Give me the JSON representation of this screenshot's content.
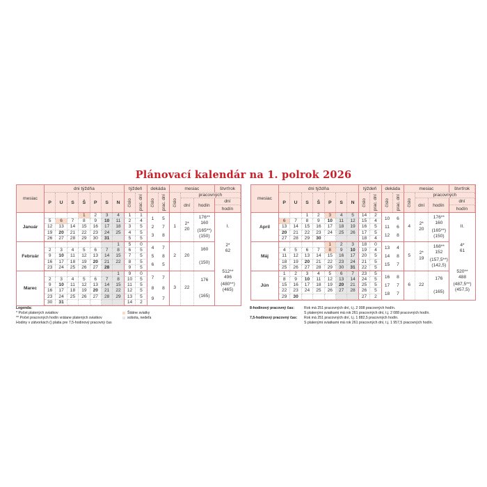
{
  "title": "Plánovací kalendár na 1. polrok 2026",
  "colors": {
    "title": "#c8202a",
    "border": "#e07b80",
    "header_bg": "#fbe3dc",
    "holiday": "#fbd9c9",
    "weekend": "#e6e6e6"
  },
  "header": {
    "month": "mesiac",
    "weekdays_group": "dni týždňa",
    "weekdays": [
      "P",
      "U",
      "S",
      "Š",
      "P",
      "S",
      "N"
    ],
    "week_group": "týždeň",
    "number": "číslo",
    "workdays_short": "prac. dní",
    "decade_group": "dekáda",
    "month_group": "mesiac",
    "working": "pracovných",
    "days": "dní",
    "hours": "hodín",
    "quarter_group": "štvrťrok"
  },
  "halves": [
    {
      "months": [
        {
          "name": "Január",
          "holidays": [
            "1",
            "6"
          ],
          "bold": [
            "10",
            "20",
            "31"
          ],
          "weeks": [
            {
              "days": [
                "",
                "",
                "",
                "1",
                "2",
                "3",
                "4"
              ],
              "week": "1",
              "workdays": "1"
            },
            {
              "days": [
                "5",
                "6",
                "7",
                "8",
                "9",
                "10",
                "11"
              ],
              "week": "2",
              "workdays": "4"
            },
            {
              "days": [
                "12",
                "13",
                "14",
                "15",
                "16",
                "17",
                "18"
              ],
              "week": "3",
              "workdays": "5"
            },
            {
              "days": [
                "19",
                "20",
                "21",
                "22",
                "23",
                "24",
                "25"
              ],
              "week": "4",
              "workdays": "5"
            },
            {
              "days": [
                "26",
                "27",
                "28",
                "29",
                "30",
                "31",
                ""
              ],
              "week": "5",
              "workdays": "5"
            }
          ],
          "decades": [
            [
              "1",
              "5"
            ],
            [
              "2",
              "7"
            ],
            [
              "3",
              "8"
            ]
          ],
          "number": "1",
          "days": [
            "2*",
            "20"
          ],
          "hours": [
            [
              "176**",
              "160"
            ],
            [
              "(165**)",
              "(150)"
            ]
          ]
        },
        {
          "name": "Február",
          "holidays": [],
          "bold": [
            "10",
            "20",
            "28"
          ],
          "weeks": [
            {
              "days": [
                "",
                "",
                "",
                "",
                "",
                "",
                "1"
              ],
              "week": "5",
              "workdays": "0"
            },
            {
              "days": [
                "2",
                "3",
                "4",
                "5",
                "6",
                "7",
                "8"
              ],
              "week": "6",
              "workdays": "5"
            },
            {
              "days": [
                "9",
                "10",
                "11",
                "12",
                "13",
                "14",
                "15"
              ],
              "week": "7",
              "workdays": "5"
            },
            {
              "days": [
                "16",
                "17",
                "18",
                "19",
                "20",
                "21",
                "22"
              ],
              "week": "8",
              "workdays": "5"
            },
            {
              "days": [
                "23",
                "24",
                "25",
                "26",
                "27",
                "28",
                ""
              ],
              "week": "9",
              "workdays": "5"
            }
          ],
          "decades": [
            [
              "4",
              "7"
            ],
            [
              "5",
              "8"
            ],
            [
              "6",
              "5"
            ]
          ],
          "number": "2",
          "days": [
            "20"
          ],
          "hours": [
            [
              "160"
            ],
            [
              "(150)"
            ]
          ]
        },
        {
          "name": "Marec",
          "holidays": [],
          "bold": [
            "10",
            "20",
            "31"
          ],
          "weeks": [
            {
              "days": [
                "",
                "",
                "",
                "",
                "",
                "",
                "1"
              ],
              "week": "9",
              "workdays": "0"
            },
            {
              "days": [
                "2",
                "3",
                "4",
                "5",
                "6",
                "7",
                "8"
              ],
              "week": "10",
              "workdays": "5"
            },
            {
              "days": [
                "9",
                "10",
                "11",
                "12",
                "13",
                "14",
                "15"
              ],
              "week": "11",
              "workdays": "5"
            },
            {
              "days": [
                "16",
                "17",
                "18",
                "19",
                "20",
                "21",
                "22"
              ],
              "week": "12",
              "workdays": "5"
            },
            {
              "days": [
                "23",
                "24",
                "25",
                "26",
                "27",
                "28",
                "29"
              ],
              "week": "13",
              "workdays": "5"
            },
            {
              "days": [
                "30",
                "31",
                "",
                "",
                "",
                "",
                ""
              ],
              "week": "14",
              "workdays": "2"
            }
          ],
          "decades": [
            [
              "7",
              "7"
            ],
            [
              "8",
              "8"
            ],
            [
              "9",
              "7"
            ]
          ],
          "number": "3",
          "days": [
            "22"
          ],
          "hours": [
            [
              "176"
            ],
            [
              "(165)"
            ]
          ]
        }
      ],
      "quarter": {
        "label": "I.",
        "days": [
          "2*",
          "62"
        ],
        "hours": [
          "512**",
          "496"
        ],
        "hours75": [
          "(480**)",
          "(465)"
        ]
      }
    },
    {
      "months": [
        {
          "name": "Apríl",
          "holidays": [
            "3",
            "6"
          ],
          "bold": [
            "10",
            "20",
            "30"
          ],
          "weeks": [
            {
              "days": [
                "",
                "",
                "1",
                "2",
                "3",
                "4",
                "5"
              ],
              "week": "14",
              "workdays": "2"
            },
            {
              "days": [
                "6",
                "7",
                "8",
                "9",
                "10",
                "11",
                "12"
              ],
              "week": "15",
              "workdays": "4"
            },
            {
              "days": [
                "13",
                "14",
                "15",
                "16",
                "17",
                "18",
                "19"
              ],
              "week": "16",
              "workdays": "5"
            },
            {
              "days": [
                "20",
                "21",
                "22",
                "23",
                "24",
                "25",
                "26"
              ],
              "week": "17",
              "workdays": "5"
            },
            {
              "days": [
                "27",
                "28",
                "29",
                "30",
                "",
                "",
                ""
              ],
              "week": "18",
              "workdays": "4"
            }
          ],
          "decades": [
            [
              "10",
              "6"
            ],
            [
              "11",
              "6"
            ],
            [
              "12",
              "8"
            ]
          ],
          "number": "4",
          "days": [
            "2*",
            "20"
          ],
          "hours": [
            [
              "176**",
              "160"
            ],
            [
              "(165**)",
              "(150)"
            ]
          ]
        },
        {
          "name": "Máj",
          "holidays": [
            "1",
            "8"
          ],
          "bold": [
            "10",
            "20",
            "31"
          ],
          "weeks": [
            {
              "days": [
                "",
                "",
                "",
                "",
                "1",
                "2",
                "3"
              ],
              "week": "18",
              "workdays": "0"
            },
            {
              "days": [
                "4",
                "5",
                "6",
                "7",
                "8",
                "9",
                "10"
              ],
              "week": "19",
              "workdays": "4"
            },
            {
              "days": [
                "11",
                "12",
                "13",
                "14",
                "15",
                "16",
                "17"
              ],
              "week": "20",
              "workdays": "5"
            },
            {
              "days": [
                "18",
                "19",
                "20",
                "21",
                "22",
                "23",
                "24"
              ],
              "week": "21",
              "workdays": "5"
            },
            {
              "days": [
                "25",
                "26",
                "27",
                "28",
                "29",
                "30",
                "31"
              ],
              "week": "22",
              "workdays": "5"
            }
          ],
          "decades": [
            [
              "13",
              "4"
            ],
            [
              "14",
              "8"
            ],
            [
              "15",
              "7"
            ]
          ],
          "number": "5",
          "days": [
            "2*",
            "19"
          ],
          "hours": [
            [
              "168**",
              "152"
            ],
            [
              "(157,5**)",
              "(142,5)"
            ]
          ]
        },
        {
          "name": "Jún",
          "holidays": [],
          "bold": [
            "10",
            "20",
            "30"
          ],
          "weeks": [
            {
              "days": [
                "1",
                "2",
                "3",
                "4",
                "5",
                "6",
                "7"
              ],
              "week": "23",
              "workdays": "5"
            },
            {
              "days": [
                "8",
                "9",
                "10",
                "11",
                "12",
                "13",
                "14"
              ],
              "week": "24",
              "workdays": "5"
            },
            {
              "days": [
                "15",
                "16",
                "17",
                "18",
                "19",
                "20",
                "21"
              ],
              "week": "25",
              "workdays": "5"
            },
            {
              "days": [
                "22",
                "23",
                "24",
                "25",
                "26",
                "27",
                "28"
              ],
              "week": "26",
              "workdays": "5"
            },
            {
              "days": [
                "29",
                "30",
                "",
                "",
                "",
                "",
                ""
              ],
              "week": "27",
              "workdays": "2"
            }
          ],
          "decades": [
            [
              "16",
              "8"
            ],
            [
              "17",
              "7"
            ],
            [
              "18",
              "7"
            ]
          ],
          "number": "6",
          "days": [
            "22"
          ],
          "hours": [
            [
              "176"
            ],
            [
              "(165)"
            ]
          ]
        }
      ],
      "quarter": {
        "label": "II.",
        "days": [
          "4*",
          "61"
        ],
        "hours": [
          "520**",
          "488"
        ],
        "hours75": [
          "(487,5**)",
          "(457,5)"
        ]
      }
    }
  ],
  "legend": {
    "title": "Legenda:",
    "notes": [
      "* Počet platených sviatkov",
      "** Počet pracovných hodín vrátane platených sviatkov",
      "Hodiny v zátvorkách () platia pre 7,5-hodinový pracovný čas"
    ],
    "holiday": "Štátne sviatky",
    "weekend": "sobota, nedeľa"
  },
  "summary": [
    {
      "label": "8-hodinový pracovný čas:",
      "lines": [
        "Rok má 251 pracovných dní, t.j. 2 008 pracovných hodín.",
        "S platenými sviatkami má rok 261 pracovných dní, t.j. 2 088 pracovných hodín."
      ]
    },
    {
      "label": "7,5-hodinový pracovný čas:",
      "lines": [
        "Rok má 251 pracovných dní, t.j. 1 882,5 pracovných hodín.",
        "S platenými sviatkami má rok 261 pracovných dní, t.j. 1 957,5 pracovných hodín."
      ]
    }
  ]
}
